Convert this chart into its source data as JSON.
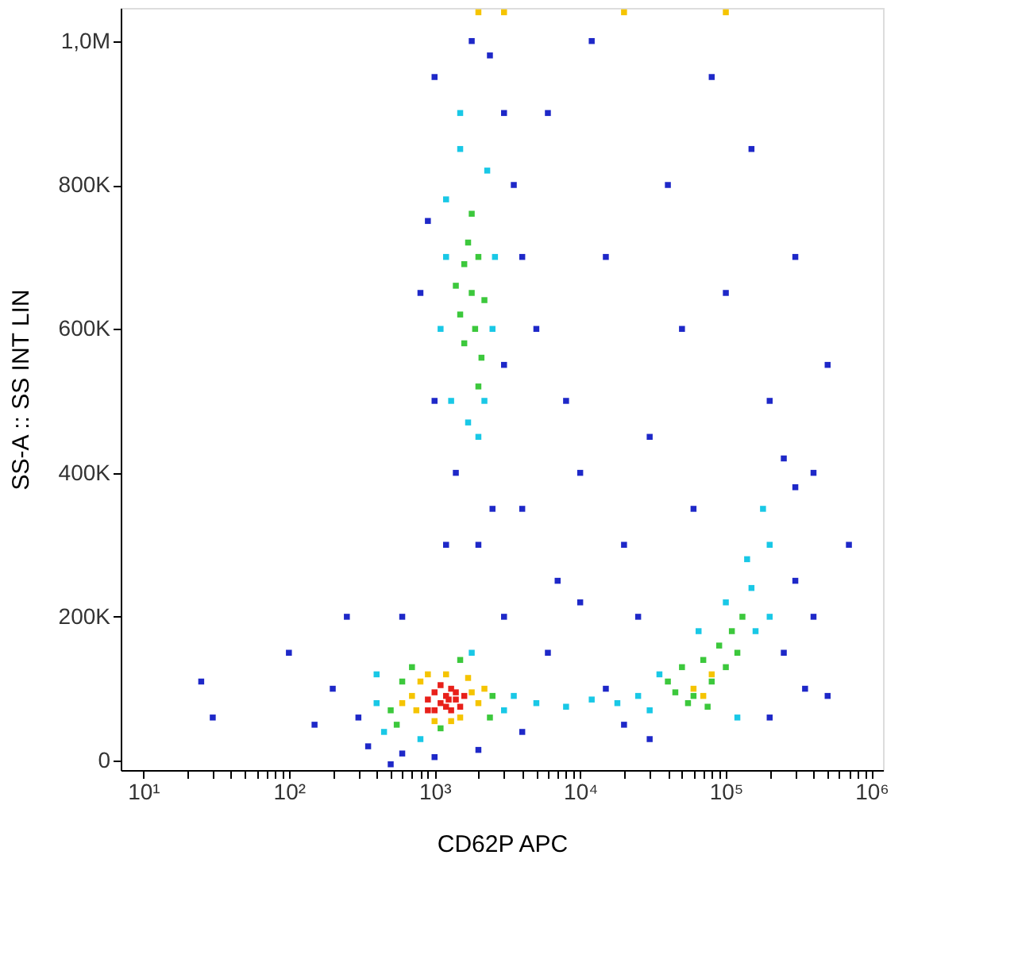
{
  "chart_data": {
    "type": "scatter",
    "xlabel": "CD62P APC",
    "ylabel": "SS-A :: SS INT LIN",
    "log": "x",
    "grid": false,
    "marker": "square",
    "xlim": [
      7,
      1200000
    ],
    "ylim": [
      -13000,
      1046000
    ],
    "xticks": [
      {
        "value": 10,
        "label": "10¹"
      },
      {
        "value": 20,
        "label": null
      },
      {
        "value": 30,
        "label": null
      },
      {
        "value": 40,
        "label": null
      },
      {
        "value": 50,
        "label": null
      },
      {
        "value": 60,
        "label": null
      },
      {
        "value": 70,
        "label": null
      },
      {
        "value": 80,
        "label": null
      },
      {
        "value": 90,
        "label": null
      },
      {
        "value": 100,
        "label": "10²"
      },
      {
        "value": 200,
        "label": null
      },
      {
        "value": 300,
        "label": null
      },
      {
        "value": 400,
        "label": null
      },
      {
        "value": 500,
        "label": null
      },
      {
        "value": 600,
        "label": null
      },
      {
        "value": 700,
        "label": null
      },
      {
        "value": 800,
        "label": null
      },
      {
        "value": 900,
        "label": null
      },
      {
        "value": 1000,
        "label": "10³"
      },
      {
        "value": 2000,
        "label": null
      },
      {
        "value": 3000,
        "label": null
      },
      {
        "value": 4000,
        "label": null
      },
      {
        "value": 5000,
        "label": null
      },
      {
        "value": 6000,
        "label": null
      },
      {
        "value": 7000,
        "label": null
      },
      {
        "value": 8000,
        "label": null
      },
      {
        "value": 9000,
        "label": null
      },
      {
        "value": 10000,
        "label": "10⁴"
      },
      {
        "value": 20000,
        "label": null
      },
      {
        "value": 30000,
        "label": null
      },
      {
        "value": 40000,
        "label": null
      },
      {
        "value": 50000,
        "label": null
      },
      {
        "value": 60000,
        "label": null
      },
      {
        "value": 70000,
        "label": null
      },
      {
        "value": 80000,
        "label": null
      },
      {
        "value": 90000,
        "label": null
      },
      {
        "value": 100000,
        "label": "10⁵"
      },
      {
        "value": 200000,
        "label": null
      },
      {
        "value": 300000,
        "label": null
      },
      {
        "value": 400000,
        "label": null
      },
      {
        "value": 500000,
        "label": null
      },
      {
        "value": 600000,
        "label": null
      },
      {
        "value": 700000,
        "label": null
      },
      {
        "value": 800000,
        "label": null
      },
      {
        "value": 900000,
        "label": null
      },
      {
        "value": 1000000,
        "label": "10⁶"
      }
    ],
    "yticks": [
      0,
      {
        "value": 200000,
        "label": "200K"
      },
      {
        "value": 400000,
        "label": "400K"
      },
      {
        "value": 600000,
        "label": "600K"
      },
      {
        "value": 800000,
        "label": "800K"
      },
      {
        "value": 1000000,
        "label": "1,0M"
      }
    ],
    "series": [
      {
        "color": "#1e28c8",
        "x": [
          1000,
          1800,
          2400,
          3000,
          900,
          3500,
          1000,
          3000,
          1400,
          2500,
          800,
          4000,
          2000,
          1200,
          5000,
          8000,
          10000,
          15000,
          20000,
          30000,
          50000,
          7000,
          40000,
          100000,
          200000,
          300000,
          6000,
          12000,
          80000,
          400000,
          150000,
          25000,
          4000,
          3000,
          6000,
          10000,
          60000,
          300000,
          500000,
          700000,
          250000,
          300,
          350,
          600,
          1000,
          2000,
          4000,
          200,
          150,
          30,
          100,
          250,
          600,
          500,
          20000,
          15000,
          300000,
          250000,
          400000,
          350000,
          200000,
          30000,
          500000,
          25
        ],
        "values": [
          950000,
          1000000,
          980000,
          900000,
          750000,
          800000,
          500000,
          550000,
          400000,
          350000,
          650000,
          700000,
          300000,
          300000,
          600000,
          500000,
          400000,
          700000,
          300000,
          450000,
          600000,
          250000,
          800000,
          650000,
          500000,
          700000,
          900000,
          1000000,
          950000,
          400000,
          850000,
          200000,
          350000,
          200000,
          150000,
          220000,
          350000,
          380000,
          550000,
          300000,
          150000,
          60000,
          20000,
          10000,
          5000,
          15000,
          40000,
          100000,
          50000,
          60000,
          150000,
          200000,
          200000,
          -5000,
          50000,
          100000,
          250000,
          420000,
          200000,
          100000,
          60000,
          30000,
          90000,
          110000
        ]
      },
      {
        "color": "#19c8e6",
        "x": [
          1300,
          2500,
          1200,
          2300,
          1500,
          1200,
          2600,
          1700,
          2000,
          1100,
          1500,
          2200,
          30000,
          35000,
          150000,
          140000,
          160000,
          100000,
          25000,
          200000,
          180000,
          65000,
          120000,
          200000,
          400,
          450,
          3000,
          3500,
          800,
          1800,
          400,
          5000,
          8000,
          12000,
          18000
        ],
        "values": [
          500000,
          600000,
          780000,
          820000,
          850000,
          700000,
          700000,
          470000,
          450000,
          600000,
          900000,
          500000,
          70000,
          120000,
          240000,
          280000,
          180000,
          220000,
          90000,
          300000,
          350000,
          180000,
          60000,
          200000,
          80000,
          40000,
          70000,
          90000,
          30000,
          150000,
          120000,
          80000,
          75000,
          85000,
          80000
        ]
      },
      {
        "color": "#3cc83c",
        "x": [
          1500,
          1800,
          2000,
          1600,
          2200,
          1700,
          1900,
          1400,
          2100,
          1800,
          2000,
          1600,
          40000,
          50000,
          60000,
          70000,
          80000,
          90000,
          100000,
          110000,
          120000,
          55000,
          45000,
          130000,
          75000,
          500,
          600,
          2500,
          2400,
          550,
          700,
          1500,
          1100
        ],
        "values": [
          620000,
          650000,
          700000,
          580000,
          640000,
          720000,
          600000,
          660000,
          560000,
          760000,
          520000,
          690000,
          110000,
          130000,
          90000,
          140000,
          110000,
          160000,
          130000,
          180000,
          150000,
          80000,
          95000,
          200000,
          75000,
          70000,
          110000,
          90000,
          60000,
          50000,
          130000,
          140000,
          45000
        ]
      },
      {
        "color": "#f5c400",
        "x": [
          700,
          800,
          1800,
          2000,
          750,
          1700,
          900,
          1500,
          1200,
          1000,
          600,
          2200,
          1300,
          60000,
          80000,
          70000,
          2000,
          3000,
          20000,
          100000
        ],
        "values": [
          90000,
          110000,
          95000,
          80000,
          70000,
          115000,
          120000,
          60000,
          120000,
          55000,
          80000,
          100000,
          55000,
          100000,
          120000,
          90000,
          1040000,
          1040000,
          1040000,
          1040000
        ]
      },
      {
        "color": "#e8201a",
        "x": [
          900,
          1000,
          1100,
          1200,
          1300,
          1400,
          1500,
          1000,
          1200,
          1400,
          1100,
          1300,
          900,
          1600,
          1250
        ],
        "values": [
          85000,
          95000,
          80000,
          90000,
          100000,
          85000,
          75000,
          70000,
          75000,
          95000,
          105000,
          70000,
          70000,
          90000,
          85000
        ]
      }
    ]
  }
}
